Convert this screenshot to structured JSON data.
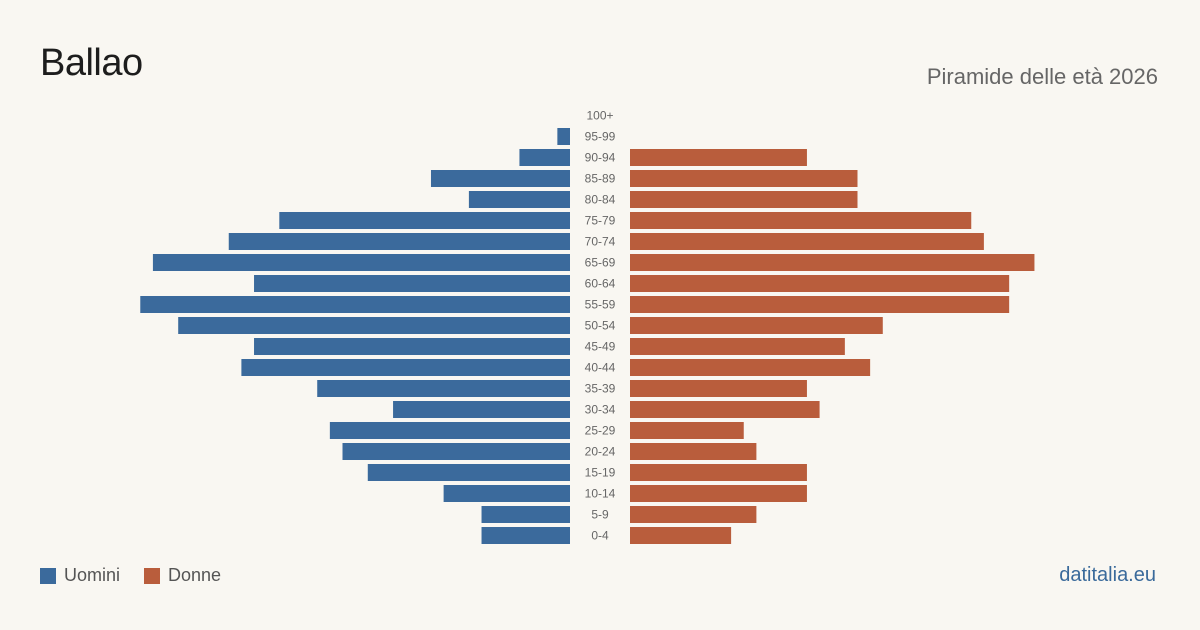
{
  "header": {
    "title": "Ballao",
    "subtitle": "Piramide delle età 2026"
  },
  "legend": {
    "men_label": "Uomini",
    "women_label": "Donne"
  },
  "source": "datitalia.eu",
  "colors": {
    "men": "#3b6a9c",
    "women": "#b95d3c",
    "background": "#f9f7f2"
  },
  "chart_data": {
    "type": "bar",
    "orientation": "horizontal-pyramid",
    "categories": [
      "100+",
      "95-99",
      "90-94",
      "85-89",
      "80-84",
      "75-79",
      "70-74",
      "65-69",
      "60-64",
      "55-59",
      "50-54",
      "45-49",
      "40-44",
      "35-39",
      "30-34",
      "25-29",
      "20-24",
      "15-19",
      "10-14",
      "5-9",
      "0-4"
    ],
    "series": [
      {
        "name": "Uomini",
        "values": [
          0,
          1,
          4,
          11,
          8,
          23,
          27,
          33,
          25,
          34,
          31,
          25,
          26,
          20,
          14,
          19,
          18,
          16,
          10,
          7,
          7
        ]
      },
      {
        "name": "Donne",
        "values": [
          0,
          0,
          14,
          18,
          18,
          27,
          28,
          32,
          30,
          30,
          20,
          17,
          19,
          14,
          15,
          9,
          10,
          14,
          14,
          10,
          8
        ]
      }
    ],
    "xlim": [
      0,
      36
    ],
    "grid": false,
    "legend_position": "bottom-left"
  }
}
